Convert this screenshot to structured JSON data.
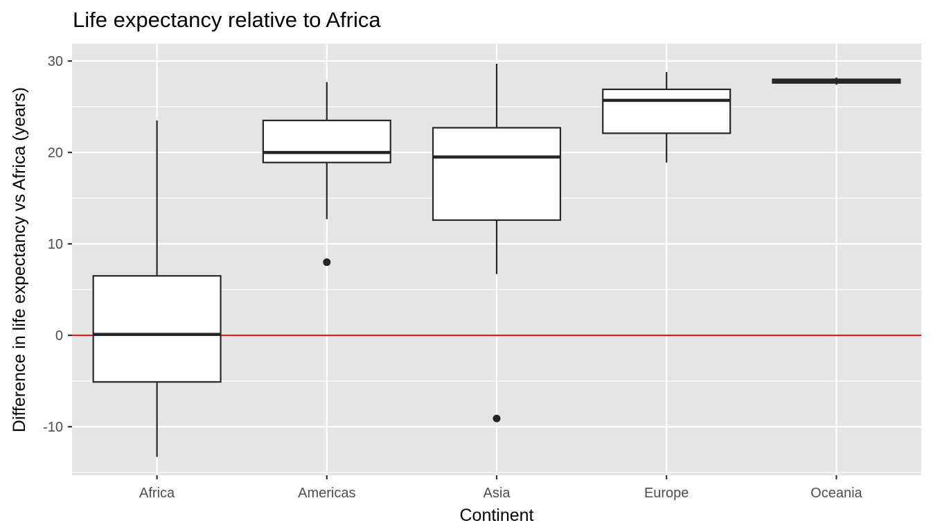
{
  "chart_data": {
    "type": "boxplot",
    "title": "Life expectancy relative to Africa",
    "xlabel": "Continent",
    "ylabel": "Difference in life expectancy vs Africa (years)",
    "ylim": [
      -15.3,
      31.9
    ],
    "yticks": [
      -10,
      0,
      10,
      20,
      30
    ],
    "categories": [
      "Africa",
      "Americas",
      "Asia",
      "Europe",
      "Oceania"
    ],
    "grid": true,
    "reference_line": {
      "y": 0,
      "color": "#e41a1c"
    },
    "colors": {
      "panel": "#e5e5e5",
      "grid": "#ffffff",
      "box_fill": "#ffffff",
      "box_stroke": "#262626",
      "tick_text": "#4d4d4d"
    },
    "boxes": [
      {
        "category": "Africa",
        "whisker_low": -13.3,
        "q1": -5.1,
        "median": 0.1,
        "q3": 6.5,
        "whisker_high": 23.5,
        "outliers": []
      },
      {
        "category": "Americas",
        "whisker_low": 12.7,
        "q1": 18.9,
        "median": 20.0,
        "q3": 23.5,
        "whisker_high": 27.7,
        "outliers": [
          8.0
        ]
      },
      {
        "category": "Asia",
        "whisker_low": 6.7,
        "q1": 12.6,
        "median": 19.5,
        "q3": 22.7,
        "whisker_high": 29.7,
        "outliers": [
          -9.1
        ]
      },
      {
        "category": "Europe",
        "whisker_low": 18.9,
        "q1": 22.1,
        "median": 25.7,
        "q3": 26.9,
        "whisker_high": 28.8,
        "outliers": []
      },
      {
        "category": "Oceania",
        "whisker_low": 27.4,
        "q1": 27.6,
        "median": 27.8,
        "q3": 28.0,
        "whisker_high": 28.2,
        "outliers": []
      }
    ]
  }
}
